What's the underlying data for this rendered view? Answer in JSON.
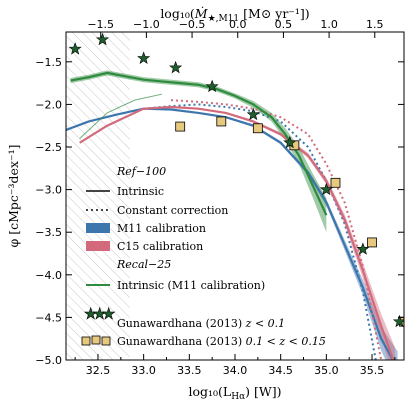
{
  "chart_data": {
    "type": "line",
    "xlabel": "log₁₀(L",
    "xlabel_sub": "Hα",
    "xlabel_tail": ") [W])",
    "ylabel": "φ [cMpc⁻³dex⁻¹]",
    "top_xlabel_pre": "log₁₀(",
    "top_xlabel_sym": "Ṁ",
    "top_xlabel_sub": "★,M11",
    "top_xlabel_post": " [M⊙ yr⁻¹])",
    "xlim": [
      32.15,
      35.85
    ],
    "ylim": [
      -5.0,
      -1.15
    ],
    "x_ticks": [
      "32.5",
      "33.0",
      "33.5",
      "34.0",
      "34.5",
      "35.0",
      "35.5"
    ],
    "y_ticks": [
      "−1.5",
      "−2.0",
      "−2.5",
      "−3.0",
      "−3.5",
      "−4.0",
      "−4.5",
      "−5.0"
    ],
    "top_ticks": [
      {
        "label": "−1.5",
        "x": 32.53
      },
      {
        "label": "−1.0",
        "x": 33.03
      },
      {
        "label": "−0.5",
        "x": 33.53
      },
      {
        "label": "0.0",
        "x": 34.03
      },
      {
        "label": "0.5",
        "x": 34.53
      },
      {
        "label": "1.0",
        "x": 35.03
      },
      {
        "label": "1.5",
        "x": 35.53
      }
    ],
    "colors": {
      "m11": "#3d76ad",
      "c15": "#d26a7c",
      "recal": "#2e8b3e",
      "gama_star": "#1f5e2c",
      "gama_square": "#e6c87f",
      "hatch": "#c8c8c8"
    },
    "hatch_region": {
      "x_max": 32.85
    },
    "series": [
      {
        "key": "m11_intrinsic",
        "style": "solid",
        "x": [
          32.15,
          32.4,
          32.7,
          33.0,
          33.3,
          33.6,
          33.9,
          34.2,
          34.5,
          34.8,
          35.0,
          35.2,
          35.4,
          35.6,
          35.78
        ],
        "y": [
          -2.3,
          -2.2,
          -2.12,
          -2.05,
          -2.06,
          -2.1,
          -2.15,
          -2.25,
          -2.45,
          -2.8,
          -3.15,
          -3.65,
          -4.15,
          -4.75,
          -5.1
        ]
      },
      {
        "key": "m11_constant",
        "style": "dotted",
        "x": [
          33.0,
          33.3,
          33.6,
          33.9,
          34.2,
          34.5,
          34.8,
          35.0,
          35.2,
          35.4,
          35.55
        ],
        "y": [
          -2.05,
          -2.02,
          -2.0,
          -2.03,
          -2.08,
          -2.2,
          -2.5,
          -2.9,
          -3.4,
          -4.2,
          -5.05
        ]
      },
      {
        "key": "c15_intrinsic",
        "style": "solid",
        "x": [
          32.3,
          32.6,
          33.0,
          33.3,
          33.6,
          33.9,
          34.2,
          34.5,
          34.8,
          35.0,
          35.2,
          35.4,
          35.6,
          35.75
        ],
        "y": [
          -2.45,
          -2.25,
          -2.05,
          -2.03,
          -2.05,
          -2.1,
          -2.2,
          -2.35,
          -2.6,
          -2.9,
          -3.35,
          -3.95,
          -4.6,
          -5.05
        ]
      },
      {
        "key": "c15_constant",
        "style": "dotted",
        "x": [
          33.3,
          33.6,
          33.9,
          34.2,
          34.5,
          34.8,
          35.0,
          35.2,
          35.4,
          35.6
        ],
        "y": [
          -1.95,
          -1.97,
          -2.0,
          -2.05,
          -2.15,
          -2.35,
          -2.7,
          -3.15,
          -3.9,
          -5.0
        ]
      },
      {
        "key": "recal_intrinsic",
        "style": "solid",
        "x": [
          32.2,
          32.4,
          32.6,
          32.8,
          33.0,
          33.2,
          33.4,
          33.6,
          33.8,
          34.0,
          34.2,
          34.4,
          34.55,
          34.7,
          34.85,
          35.0
        ],
        "y": [
          -1.72,
          -1.68,
          -1.63,
          -1.67,
          -1.71,
          -1.73,
          -1.75,
          -1.77,
          -1.82,
          -1.9,
          -2.0,
          -2.15,
          -2.35,
          -2.6,
          -2.95,
          -3.3
        ]
      },
      {
        "key": "recal_low",
        "style": "thin",
        "x": [
          32.3,
          32.6,
          32.9,
          33.2
        ],
        "y": [
          -2.4,
          -2.1,
          -1.95,
          -1.88
        ]
      }
    ],
    "bands": [
      {
        "key": "m11_band",
        "center": "m11_intrinsic",
        "half_width": [
          0.01,
          0.01,
          0.01,
          0.01,
          0.01,
          0.01,
          0.01,
          0.015,
          0.02,
          0.03,
          0.04,
          0.06,
          0.09,
          0.14,
          0.2
        ]
      },
      {
        "key": "c15_band",
        "center": "c15_intrinsic",
        "half_width": [
          0.01,
          0.01,
          0.01,
          0.01,
          0.01,
          0.01,
          0.015,
          0.02,
          0.03,
          0.04,
          0.06,
          0.09,
          0.14,
          0.2
        ]
      },
      {
        "key": "recal_band",
        "center": "recal_intrinsic",
        "half_width": [
          0.03,
          0.03,
          0.03,
          0.03,
          0.03,
          0.03,
          0.03,
          0.03,
          0.03,
          0.03,
          0.04,
          0.05,
          0.07,
          0.1,
          0.14,
          0.2
        ]
      }
    ],
    "gama_stars": {
      "x": [
        32.25,
        32.55,
        33.0,
        33.35,
        33.75,
        34.2,
        34.6,
        35.0,
        35.4,
        35.8
      ],
      "y": [
        -1.35,
        -1.24,
        -1.46,
        -1.57,
        -1.79,
        -2.12,
        -2.45,
        -3.0,
        -3.7,
        -4.55
      ]
    },
    "gama_squares": {
      "x": [
        33.4,
        33.85,
        34.25,
        34.65,
        35.1,
        35.5,
        35.85
      ],
      "y": [
        -2.26,
        -2.2,
        -2.28,
        -2.48,
        -2.92,
        -3.62,
        -4.55
      ]
    },
    "legend": {
      "ref_title": "Ref−100",
      "intrinsic": "Intrinsic",
      "constant": "Constant correction",
      "m11": "M11 calibration",
      "c15": "C15 calibration",
      "recal_title": "Recal−25",
      "recal_intrinsic": "Intrinsic (M11 calibration)",
      "gama_star_prefix": "Gunawardhana (2013) ",
      "gama_star_cond": "z < 0.1",
      "gama_square_prefix": "Gunawardhana (2013) ",
      "gama_square_cond": "0.1 < z < 0.15"
    }
  }
}
